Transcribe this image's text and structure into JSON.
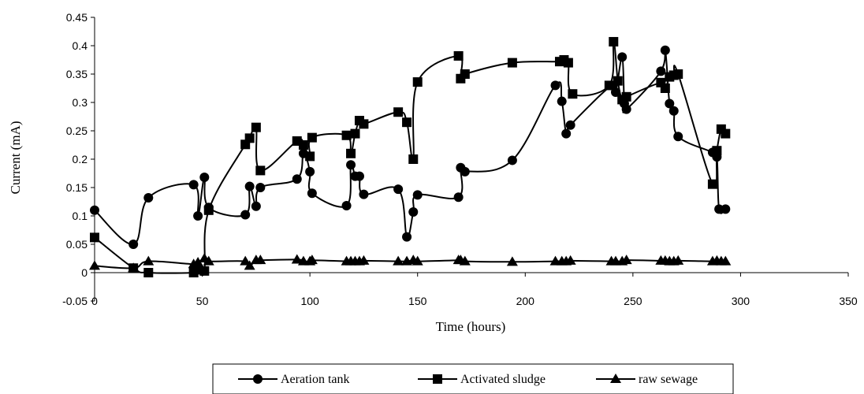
{
  "chart_data": {
    "type": "line",
    "xlabel": "Time (hours)",
    "ylabel": "Current (mA)",
    "xlim": [
      0,
      350
    ],
    "ylim": [
      -0.05,
      0.45
    ],
    "xticks": [
      0,
      50,
      100,
      150,
      200,
      250,
      300,
      350
    ],
    "yticks": [
      -0.05,
      0,
      0.05,
      0.1,
      0.15,
      0.2,
      0.25,
      0.3,
      0.35,
      0.4,
      0.45
    ],
    "ytick_labels": [
      "-0.05",
      "0",
      "0.05",
      "0.1",
      "0.15",
      "0.2",
      "0.25",
      "0.3",
      "0.35",
      "0.4",
      "0.45"
    ],
    "grid": false,
    "legend_position": "bottom",
    "series": [
      {
        "name": "Aeration tank",
        "marker": "circle",
        "color": "#000000",
        "points": [
          [
            0,
            0.11
          ],
          [
            18,
            0.05
          ],
          [
            25,
            0.132
          ],
          [
            46,
            0.155
          ],
          [
            48,
            0.1
          ],
          [
            51,
            0.168
          ],
          [
            53,
            0.115
          ],
          [
            70,
            0.102
          ],
          [
            72,
            0.152
          ],
          [
            75,
            0.117
          ],
          [
            77,
            0.15
          ],
          [
            94,
            0.165
          ],
          [
            97,
            0.21
          ],
          [
            100,
            0.178
          ],
          [
            101,
            0.14
          ],
          [
            117,
            0.118
          ],
          [
            119,
            0.19
          ],
          [
            121,
            0.17
          ],
          [
            123,
            0.17
          ],
          [
            125,
            0.138
          ],
          [
            141,
            0.147
          ],
          [
            145,
            0.063
          ],
          [
            148,
            0.107
          ],
          [
            150,
            0.137
          ],
          [
            169,
            0.133
          ],
          [
            170,
            0.185
          ],
          [
            172,
            0.178
          ],
          [
            194,
            0.198
          ],
          [
            214,
            0.33
          ],
          [
            217,
            0.302
          ],
          [
            219,
            0.245
          ],
          [
            221,
            0.26
          ],
          [
            240,
            0.33
          ],
          [
            242,
            0.318
          ],
          [
            245,
            0.38
          ],
          [
            246,
            0.298
          ],
          [
            247,
            0.288
          ],
          [
            263,
            0.355
          ],
          [
            265,
            0.392
          ],
          [
            267,
            0.298
          ],
          [
            269,
            0.285
          ],
          [
            271,
            0.24
          ],
          [
            287,
            0.212
          ],
          [
            289,
            0.204
          ],
          [
            290,
            0.112
          ],
          [
            293,
            0.112
          ]
        ]
      },
      {
        "name": "Activated sludge",
        "marker": "square",
        "color": "#000000",
        "points": [
          [
            0,
            0.062
          ],
          [
            18,
            0.008
          ],
          [
            25,
            0.0
          ],
          [
            46,
            0.0
          ],
          [
            48,
            0.005
          ],
          [
            51,
            0.003
          ],
          [
            53,
            0.11
          ],
          [
            70,
            0.226
          ],
          [
            72,
            0.237
          ],
          [
            75,
            0.256
          ],
          [
            77,
            0.18
          ],
          [
            94,
            0.232
          ],
          [
            97,
            0.225
          ],
          [
            100,
            0.205
          ],
          [
            101,
            0.238
          ],
          [
            117,
            0.242
          ],
          [
            119,
            0.21
          ],
          [
            121,
            0.245
          ],
          [
            123,
            0.268
          ],
          [
            125,
            0.262
          ],
          [
            141,
            0.283
          ],
          [
            145,
            0.265
          ],
          [
            148,
            0.2
          ],
          [
            150,
            0.336
          ],
          [
            169,
            0.382
          ],
          [
            170,
            0.342
          ],
          [
            172,
            0.35
          ],
          [
            194,
            0.37
          ],
          [
            216,
            0.372
          ],
          [
            218,
            0.375
          ],
          [
            220,
            0.37
          ],
          [
            222,
            0.315
          ],
          [
            239,
            0.33
          ],
          [
            241,
            0.407
          ],
          [
            243,
            0.338
          ],
          [
            245,
            0.305
          ],
          [
            247,
            0.31
          ],
          [
            263,
            0.335
          ],
          [
            265,
            0.325
          ],
          [
            267,
            0.345
          ],
          [
            269,
            0.348
          ],
          [
            271,
            0.35
          ],
          [
            287,
            0.156
          ],
          [
            289,
            0.215
          ],
          [
            291,
            0.253
          ],
          [
            293,
            0.245
          ]
        ]
      },
      {
        "name": "raw sewage",
        "marker": "triangle",
        "color": "#000000",
        "points": [
          [
            0,
            0.012
          ],
          [
            18,
            0.008
          ],
          [
            25,
            0.02
          ],
          [
            46,
            0.015
          ],
          [
            48,
            0.018
          ],
          [
            51,
            0.025
          ],
          [
            53,
            0.02
          ],
          [
            70,
            0.02
          ],
          [
            72,
            0.012
          ],
          [
            75,
            0.022
          ],
          [
            77,
            0.022
          ],
          [
            94,
            0.023
          ],
          [
            97,
            0.02
          ],
          [
            100,
            0.02
          ],
          [
            101,
            0.022
          ],
          [
            117,
            0.02
          ],
          [
            119,
            0.02
          ],
          [
            121,
            0.02
          ],
          [
            123,
            0.02
          ],
          [
            125,
            0.021
          ],
          [
            141,
            0.02
          ],
          [
            145,
            0.02
          ],
          [
            148,
            0.022
          ],
          [
            150,
            0.02
          ],
          [
            169,
            0.022
          ],
          [
            170,
            0.022
          ],
          [
            172,
            0.02
          ],
          [
            194,
            0.019
          ],
          [
            214,
            0.02
          ],
          [
            217,
            0.02
          ],
          [
            219,
            0.02
          ],
          [
            221,
            0.021
          ],
          [
            240,
            0.02
          ],
          [
            242,
            0.02
          ],
          [
            245,
            0.02
          ],
          [
            247,
            0.022
          ],
          [
            263,
            0.021
          ],
          [
            265,
            0.021
          ],
          [
            267,
            0.02
          ],
          [
            269,
            0.02
          ],
          [
            271,
            0.021
          ],
          [
            287,
            0.02
          ],
          [
            289,
            0.021
          ],
          [
            291,
            0.02
          ],
          [
            293,
            0.02
          ]
        ]
      }
    ]
  }
}
